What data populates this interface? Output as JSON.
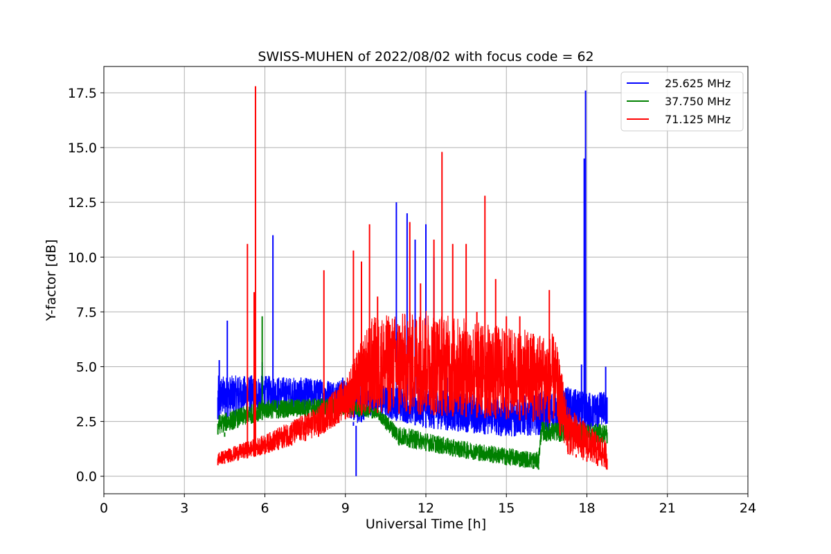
{
  "chart_data": {
    "type": "line",
    "title": "SWISS-MUHEN of 2022/08/02 with focus code = 62",
    "xlabel": "Universal Time [h]",
    "ylabel": "Y-factor [dB]",
    "xlim": [
      0,
      24
    ],
    "ylim": [
      -0.8,
      18.7
    ],
    "xticks": [
      0,
      3,
      6,
      9,
      12,
      15,
      18,
      21,
      24
    ],
    "xtick_labels": [
      "0",
      "3",
      "6",
      "9",
      "12",
      "15",
      "18",
      "21",
      "24"
    ],
    "yticks": [
      0.0,
      2.5,
      5.0,
      7.5,
      10.0,
      12.5,
      15.0,
      17.5
    ],
    "ytick_labels": [
      "0.0",
      "2.5",
      "5.0",
      "7.5",
      "10.0",
      "12.5",
      "15.0",
      "17.5"
    ],
    "grid": true,
    "legend_position": "top-right",
    "series": [
      {
        "name": "25.625 MHz",
        "color": "#0000ff",
        "x": [
          4.25,
          4.3,
          4.6,
          5.0,
          5.5,
          5.9,
          6.3,
          6.8,
          7.5,
          8.0,
          8.5,
          8.9,
          9.2,
          9.3,
          9.4,
          9.6,
          10.0,
          10.5,
          10.9,
          11.3,
          11.6,
          12.0,
          12.3,
          12.8,
          13.2,
          13.8,
          14.2,
          14.8,
          15.3,
          15.8,
          16.2,
          16.6,
          17.0,
          17.3,
          17.6,
          17.8,
          17.9,
          17.95,
          18.1,
          18.4,
          18.7,
          18.75
        ],
        "y": [
          3.6,
          5.3,
          7.1,
          4.5,
          4.6,
          5.2,
          11.0,
          4.1,
          4.2,
          4.3,
          4.0,
          4.5,
          3.0,
          2.3,
          0.0,
          2.9,
          3.5,
          3.3,
          12.5,
          12.0,
          10.8,
          11.5,
          10.0,
          4.5,
          3.2,
          2.8,
          3.0,
          2.8,
          2.6,
          2.5,
          3.5,
          3.2,
          3.0,
          3.5,
          3.5,
          5.1,
          14.5,
          17.6,
          3.8,
          2.8,
          5.0,
          3.6
        ],
        "peak": 17.6
      },
      {
        "name": "37.750 MHz",
        "color": "#008000",
        "x": [
          4.25,
          4.5,
          4.8,
          5.5,
          5.9,
          6.5,
          7.5,
          8.0,
          8.5,
          9.0,
          9.5,
          10.0,
          10.5,
          11.0,
          11.5,
          12.0,
          12.5,
          13.0,
          13.5,
          14.0,
          14.5,
          15.0,
          15.5,
          16.0,
          16.2,
          16.5,
          17.0,
          17.5,
          18.0,
          18.5,
          18.75
        ],
        "y": [
          2.4,
          1.8,
          2.9,
          3.1,
          7.3,
          3.0,
          3.0,
          3.1,
          3.2,
          3.4,
          3.2,
          3.0,
          2.8,
          1.8,
          1.5,
          1.4,
          1.3,
          1.1,
          1.0,
          0.9,
          0.7,
          0.7,
          0.6,
          0.5,
          0.4,
          2.2,
          2.0,
          1.9,
          1.8,
          1.8,
          2.0
        ]
      },
      {
        "name": "71.125 MHz",
        "color": "#ff0000",
        "x": [
          4.25,
          4.5,
          5.0,
          5.35,
          5.6,
          5.65,
          6.0,
          6.5,
          7.0,
          7.5,
          8.0,
          8.2,
          8.6,
          9.0,
          9.3,
          9.6,
          9.9,
          10.2,
          10.6,
          11.0,
          11.4,
          11.8,
          12.3,
          12.6,
          13.0,
          13.5,
          13.9,
          14.2,
          14.6,
          15.0,
          15.5,
          16.0,
          16.6,
          17.0,
          17.3,
          17.6,
          18.0,
          18.4,
          18.75
        ],
        "y": [
          0.8,
          0.7,
          1.0,
          10.6,
          8.4,
          17.8,
          1.3,
          1.5,
          1.6,
          2.0,
          2.3,
          9.4,
          2.7,
          4.0,
          10.3,
          9.8,
          11.5,
          8.2,
          4.5,
          5.3,
          11.6,
          8.8,
          10.8,
          14.8,
          10.6,
          10.6,
          7.5,
          12.8,
          9.0,
          7.3,
          7.3,
          6.5,
          8.5,
          4.0,
          1.5,
          1.0,
          0.9,
          0.8,
          0.8
        ],
        "peak": 17.8
      }
    ]
  }
}
